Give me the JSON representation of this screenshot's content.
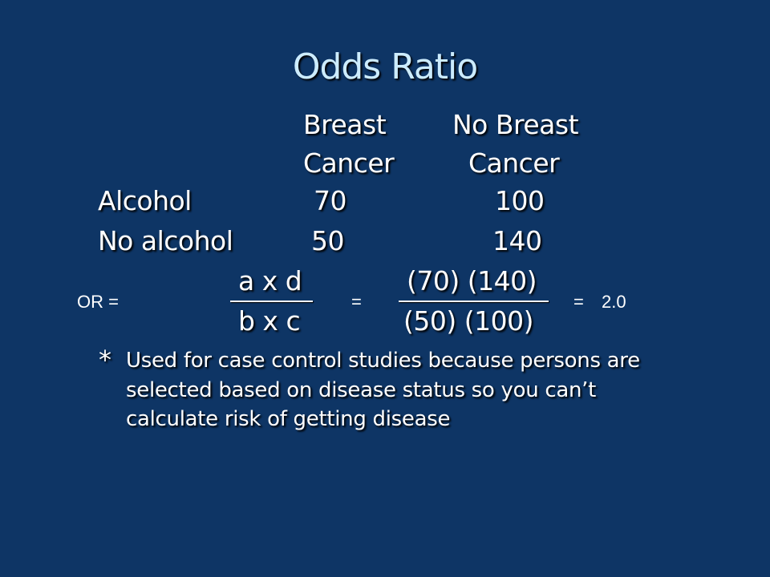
{
  "slide": {
    "title": "Odds Ratio",
    "table": {
      "col1_header": [
        "Breast",
        "Cancer"
      ],
      "col2_header": [
        "No Breast",
        "Cancer"
      ],
      "rows": [
        {
          "label": "Alcohol",
          "c1": "70",
          "c2": "100"
        },
        {
          "label": "No alcohol",
          "c1": "50",
          "c2": "140"
        }
      ]
    },
    "formula": {
      "lhs": "OR =",
      "num1": "a x d",
      "den1": "b x c",
      "eq1": "=",
      "num2": "(70) (140)",
      "den2": "(50) (100)",
      "eq2": "=",
      "result": "2.0"
    },
    "note": {
      "bullet": "*",
      "lines": [
        "Used for case control studies because persons are",
        "selected based on disease status so you can’t",
        "calculate risk of getting disease"
      ]
    }
  }
}
